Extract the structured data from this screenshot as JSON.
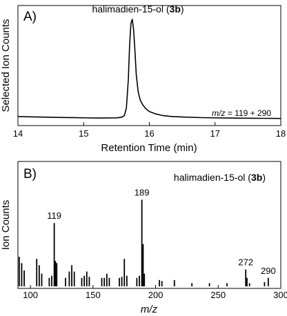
{
  "chart_data": [
    {
      "type": "line",
      "panel_label": "A)",
      "annotation": {
        "name": "halimadien-15-ol",
        "compound_id": "3b"
      },
      "mz_note": {
        "prefix": "m/z",
        "text": " = 119 + 290"
      },
      "xlabel": "Retention Time (min)",
      "ylabel": "Selected Ion Counts",
      "xlim": [
        14,
        18
      ],
      "ylim": [
        0,
        100
      ],
      "xticks": [
        14,
        15,
        16,
        17,
        18
      ],
      "xtick_labels": [
        "14",
        "15",
        "16",
        "17",
        "18"
      ],
      "grid": false,
      "series": [
        {
          "x": [
            14.0,
            14.3,
            14.6,
            14.9,
            15.2,
            15.5,
            15.58,
            15.62,
            15.65,
            15.68,
            15.7,
            15.72,
            15.74,
            15.76,
            15.78,
            15.8,
            15.83,
            15.86,
            15.9,
            15.95,
            16.0,
            16.1,
            16.2,
            16.35,
            16.5,
            16.8,
            17.2,
            17.6,
            18.0
          ],
          "y": [
            3.5,
            3.0,
            2.6,
            2.3,
            2.0,
            2.2,
            2.8,
            4.5,
            12,
            40,
            75,
            96,
            100,
            90,
            70,
            45,
            28,
            20,
            15,
            11,
            8.5,
            6.0,
            4.5,
            3.5,
            3.0,
            2.4,
            2.0,
            1.8,
            1.6
          ]
        }
      ]
    },
    {
      "type": "bar",
      "panel_label": "B)",
      "annotation": {
        "name": "halimadien-15-ol",
        "compound_id": "3b"
      },
      "xlabel": "m/z",
      "ylabel": "Ion Counts",
      "xlim": [
        90,
        300
      ],
      "ylim": [
        0,
        100
      ],
      "xticks": [
        100,
        150,
        200,
        250,
        300
      ],
      "xtick_labels": [
        "100",
        "150",
        "200",
        "250",
        "300"
      ],
      "peak_labels": [
        "119",
        "189",
        "272",
        "290"
      ],
      "peak_label_mz": [
        119,
        189,
        272,
        290
      ],
      "grid": false,
      "x": [
        91,
        93,
        95,
        105,
        107,
        109,
        115,
        117,
        119,
        120,
        121,
        128,
        131,
        133,
        135,
        141,
        143,
        145,
        147,
        157,
        159,
        161,
        163,
        171,
        173,
        175,
        177,
        185,
        187,
        189,
        190,
        191,
        203,
        205,
        215,
        229,
        243,
        257,
        272,
        273,
        275,
        287,
        290
      ],
      "values": [
        28,
        22,
        15,
        26,
        20,
        12,
        8,
        10,
        60,
        24,
        22,
        8,
        14,
        20,
        14,
        8,
        10,
        14,
        9,
        8,
        8,
        12,
        8,
        8,
        9,
        26,
        10,
        8,
        10,
        82,
        40,
        12,
        6,
        5,
        6,
        3,
        3,
        3,
        16,
        8,
        3,
        4,
        8
      ]
    }
  ]
}
